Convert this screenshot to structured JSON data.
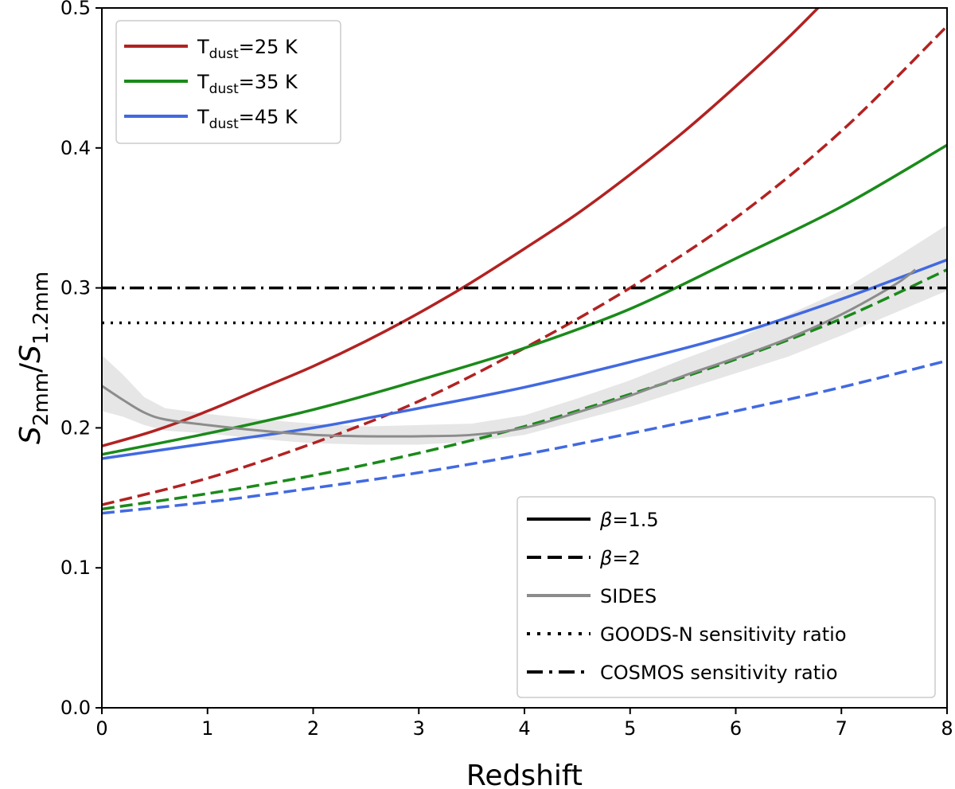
{
  "chart_data": {
    "type": "line",
    "title": "",
    "xlabel": "Redshift",
    "ylabel": {
      "main": "S",
      "numerator_sub": "2mm",
      "slash": "/",
      "denominator_sub": "1.2mm"
    },
    "xlim": [
      0,
      8
    ],
    "ylim": [
      0,
      0.5
    ],
    "xticks": [
      "0",
      "1",
      "2",
      "3",
      "4",
      "5",
      "6",
      "7",
      "8"
    ],
    "yticks": [
      "0.0",
      "0.1",
      "0.2",
      "0.3",
      "0.4",
      "0.5"
    ],
    "grid": false,
    "legend_top_left": [
      {
        "label_main": "T",
        "label_sub": "dust",
        "label_rest": "=25 K",
        "color": "#b22222"
      },
      {
        "label_main": "T",
        "label_sub": "dust",
        "label_rest": "=35 K",
        "color": "#1a8a1a"
      },
      {
        "label_main": "T",
        "label_sub": "dust",
        "label_rest": "=45 K",
        "color": "#4169e1"
      }
    ],
    "legend_bottom_right": [
      {
        "style": "solid",
        "label_greek": "β",
        "label_rest": "=1.5",
        "color": "#000000"
      },
      {
        "style": "dashed",
        "label_greek": "β",
        "label_rest": "=2",
        "color": "#000000"
      },
      {
        "style": "solid-gray",
        "label": "SIDES",
        "color": "#8c8c8c"
      },
      {
        "style": "dotted",
        "label": "GOODS-N sensitivity ratio",
        "color": "#000000"
      },
      {
        "style": "dashdot",
        "label": "COSMOS sensitivity ratio",
        "color": "#000000"
      }
    ],
    "series": [
      {
        "name": "T_dust=25 K, β=1.5",
        "color": "#b22222",
        "dash": "solid",
        "x": [
          0,
          0.5,
          1,
          1.5,
          2,
          2.5,
          3,
          3.5,
          4,
          4.5,
          5,
          5.5,
          6,
          6.5,
          7
        ],
        "y": [
          0.187,
          0.198,
          0.212,
          0.228,
          0.244,
          0.262,
          0.282,
          0.304,
          0.328,
          0.353,
          0.381,
          0.411,
          0.444,
          0.479,
          0.517
        ]
      },
      {
        "name": "T_dust=25 K, β=2",
        "color": "#b22222",
        "dash": "dashed",
        "x": [
          0,
          1,
          2,
          3,
          4,
          5,
          6,
          7,
          8
        ],
        "y": [
          0.145,
          0.164,
          0.189,
          0.219,
          0.257,
          0.3,
          0.35,
          0.412,
          0.487
        ]
      },
      {
        "name": "T_dust=35 K, β=1.5",
        "color": "#1a8a1a",
        "dash": "solid",
        "x": [
          0,
          1,
          2,
          3,
          4,
          5,
          6,
          7,
          8
        ],
        "y": [
          0.181,
          0.196,
          0.213,
          0.234,
          0.257,
          0.285,
          0.321,
          0.358,
          0.402
        ]
      },
      {
        "name": "T_dust=35 K, β=2",
        "color": "#1a8a1a",
        "dash": "dashed",
        "x": [
          0,
          1,
          2,
          3,
          4,
          5,
          6,
          7,
          8
        ],
        "y": [
          0.142,
          0.153,
          0.166,
          0.182,
          0.201,
          0.224,
          0.249,
          0.278,
          0.313
        ]
      },
      {
        "name": "T_dust=45 K, β=1.5",
        "color": "#4169e1",
        "dash": "solid",
        "x": [
          0,
          1,
          2,
          3,
          4,
          5,
          6,
          7,
          8
        ],
        "y": [
          0.178,
          0.189,
          0.2,
          0.214,
          0.229,
          0.247,
          0.267,
          0.292,
          0.32
        ]
      },
      {
        "name": "T_dust=45 K, β=2",
        "color": "#4169e1",
        "dash": "dashed",
        "x": [
          0,
          1,
          2,
          3,
          4,
          5,
          6,
          7,
          8
        ],
        "y": [
          0.139,
          0.147,
          0.157,
          0.168,
          0.181,
          0.196,
          0.212,
          0.229,
          0.248
        ]
      },
      {
        "name": "SIDES",
        "color": "#8c8c8c",
        "dash": "solid",
        "x": [
          0,
          0.2,
          0.4,
          0.6,
          1,
          1.5,
          2,
          2.5,
          3,
          3.5,
          4,
          4.5,
          5,
          5.5,
          6,
          6.5,
          7,
          7.5,
          7.7
        ],
        "y": [
          0.23,
          0.22,
          0.211,
          0.206,
          0.202,
          0.198,
          0.195,
          0.194,
          0.194,
          0.195,
          0.2,
          0.211,
          0.223,
          0.237,
          0.25,
          0.264,
          0.281,
          0.302,
          0.313
        ]
      },
      {
        "name": "GOODS-N sensitivity ratio",
        "color": "#000000",
        "dash": "dotted",
        "x": [
          0,
          8
        ],
        "y": [
          0.275,
          0.275
        ]
      },
      {
        "name": "COSMOS sensitivity ratio",
        "color": "#000000",
        "dash": "dashdot",
        "x": [
          0,
          8
        ],
        "y": [
          0.3,
          0.3
        ]
      }
    ],
    "bands": [
      {
        "name": "SIDES scatter",
        "color": "#e6e6e6",
        "x": [
          0,
          0.2,
          0.4,
          0.6,
          1,
          1.5,
          2,
          2.5,
          3,
          3.5,
          4,
          4.5,
          5,
          5.5,
          6,
          6.5,
          7,
          7.5,
          8
        ],
        "y_lower": [
          0.212,
          0.208,
          0.202,
          0.198,
          0.196,
          0.192,
          0.189,
          0.188,
          0.188,
          0.19,
          0.195,
          0.205,
          0.215,
          0.227,
          0.239,
          0.251,
          0.266,
          0.282,
          0.298
        ],
        "y_upper": [
          0.252,
          0.238,
          0.222,
          0.214,
          0.21,
          0.206,
          0.203,
          0.201,
          0.202,
          0.203,
          0.209,
          0.221,
          0.234,
          0.249,
          0.263,
          0.281,
          0.298,
          0.321,
          0.345
        ]
      }
    ]
  }
}
